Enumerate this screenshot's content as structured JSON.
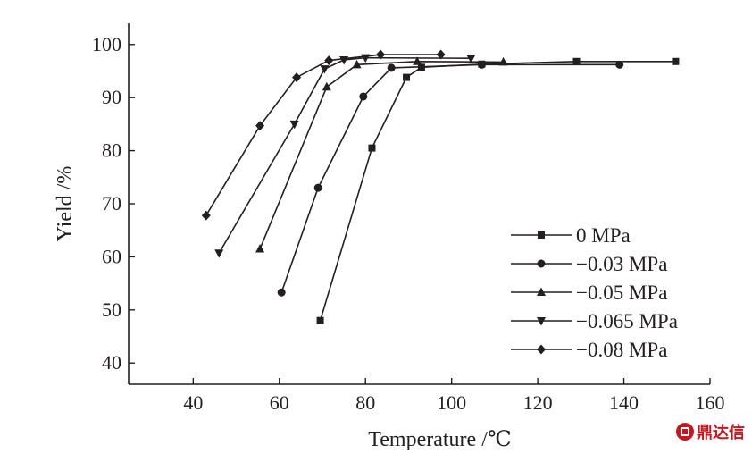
{
  "chart_data": {
    "type": "line",
    "xlabel": "Temperature /℃",
    "ylabel": "Yield /%",
    "xlim": [
      25,
      160
    ],
    "ylim": [
      36,
      104
    ],
    "xticks": [
      40,
      60,
      80,
      100,
      120,
      140,
      160
    ],
    "yticks": [
      40,
      50,
      60,
      70,
      80,
      90,
      100
    ],
    "grid": false,
    "legend_position": "lower-right",
    "series": [
      {
        "name": "0 MPa",
        "marker": "square",
        "x": [
          69.5,
          81.5,
          89.5,
          93,
          107,
          129,
          152
        ],
        "y": [
          48,
          80.5,
          93.8,
          95.7,
          96.3,
          96.8,
          96.8
        ]
      },
      {
        "name": "−0.03 MPa",
        "marker": "circle",
        "x": [
          60.5,
          69,
          79.5,
          86,
          107,
          139
        ],
        "y": [
          53.3,
          73,
          90.2,
          95.6,
          96.2,
          96.2
        ]
      },
      {
        "name": "−0.05 MPa",
        "marker": "triangle-up",
        "x": [
          55.5,
          71,
          78,
          92,
          112
        ],
        "y": [
          61.5,
          92,
          96.2,
          96.8,
          96.7
        ]
      },
      {
        "name": "−0.065 MPa",
        "marker": "triangle-down",
        "x": [
          46,
          63.5,
          70.5,
          75,
          80,
          104.5
        ],
        "y": [
          60.7,
          85,
          95.4,
          97.1,
          97.5,
          97.4
        ]
      },
      {
        "name": "−0.08 MPa",
        "marker": "diamond",
        "x": [
          43,
          55.5,
          64,
          71.5,
          83.5,
          97.5
        ],
        "y": [
          67.8,
          84.7,
          93.8,
          97,
          98.1,
          98.1
        ]
      }
    ]
  },
  "watermark": {
    "text": "鼎达信",
    "color": "#c8161e"
  },
  "colors": {
    "ink": "#231f20",
    "background": "#ffffff"
  }
}
